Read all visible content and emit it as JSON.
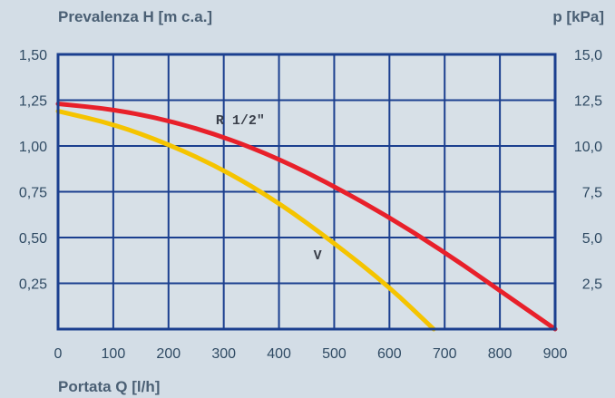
{
  "chart_data": {
    "type": "line",
    "title": "",
    "ylabel_left": "Prevalenza H [m c.a.]",
    "ylabel_right": "p [kPa]",
    "xlabel": "Portata Q [l/h]",
    "xlim": [
      0,
      900
    ],
    "ylim_left": [
      0,
      1.5
    ],
    "ylim_right": [
      0,
      15
    ],
    "grid": true,
    "x_ticks": [
      "0",
      "100",
      "200",
      "300",
      "400",
      "500",
      "600",
      "700",
      "800",
      "900"
    ],
    "y_ticks_left": [
      "0,25",
      "0,50",
      "0,75",
      "1,00",
      "1,25",
      "1,50"
    ],
    "y_ticks_right": [
      "2,5",
      "5,0",
      "7,5",
      "10,0",
      "12,5",
      "15,0"
    ],
    "series": [
      {
        "name": "R 1/2\"",
        "color": "#e8202a",
        "x": [
          0,
          100,
          200,
          300,
          400,
          500,
          600,
          700,
          800,
          900
        ],
        "y": [
          1.23,
          1.2,
          1.14,
          1.05,
          0.93,
          0.78,
          0.61,
          0.42,
          0.21,
          0.0
        ]
      },
      {
        "name": "V",
        "color": "#f5c400",
        "x": [
          0,
          100,
          200,
          300,
          400,
          500,
          600,
          680
        ],
        "y": [
          1.19,
          1.12,
          1.01,
          0.87,
          0.69,
          0.47,
          0.23,
          0.0
        ]
      }
    ]
  },
  "colors": {
    "background": "#d3dde6",
    "plot_area": "#d7e0e7",
    "grid": "#1b3f8f",
    "frame": "#1b3f8f"
  }
}
